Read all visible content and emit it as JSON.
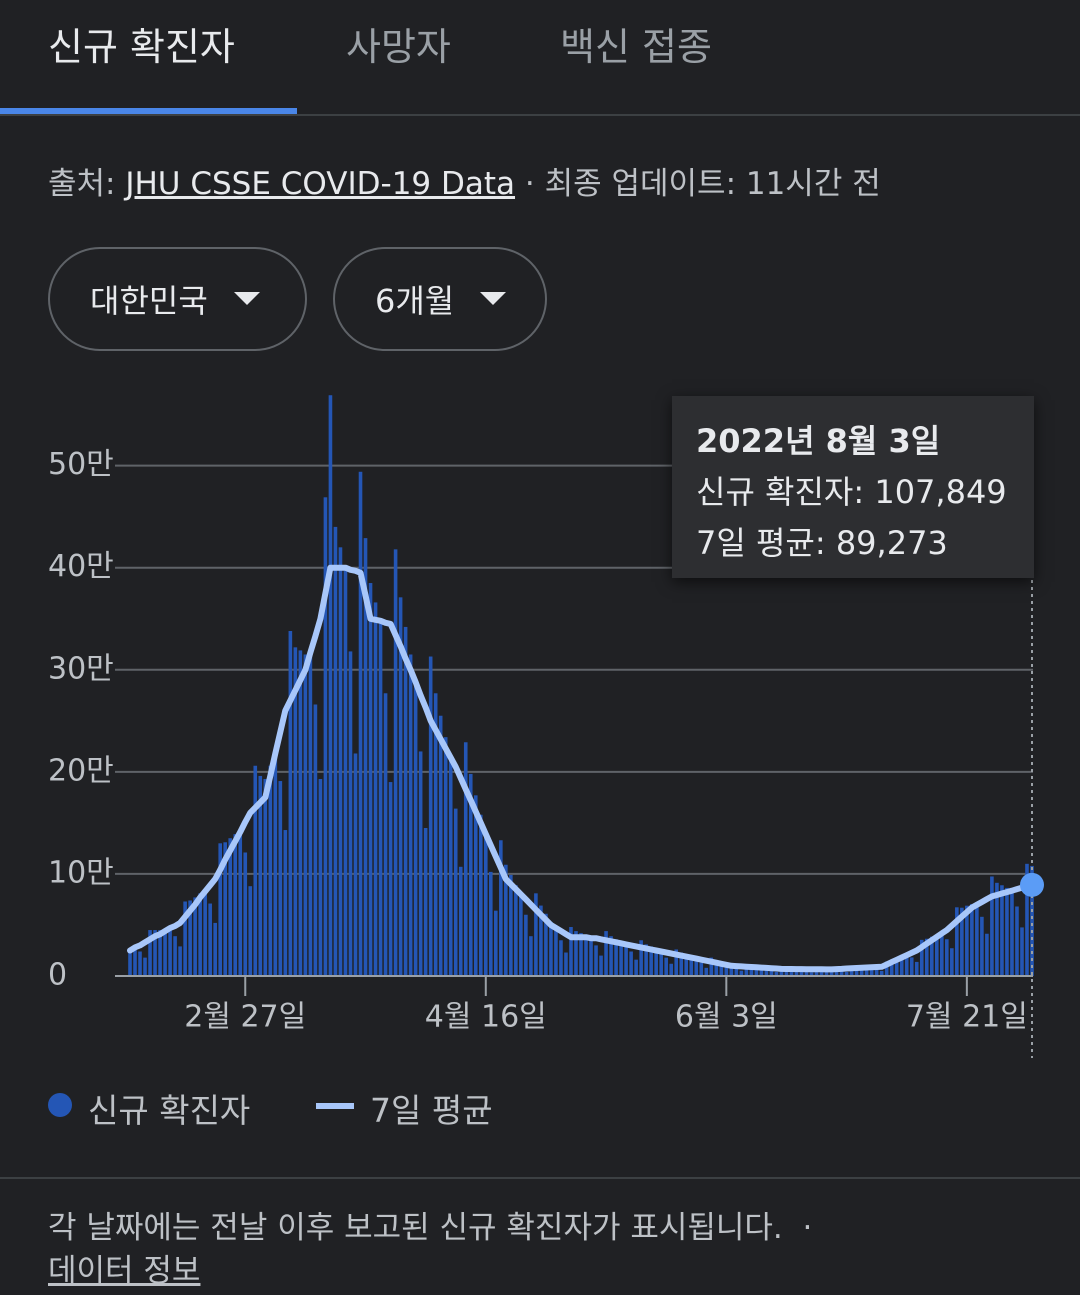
{
  "tabs": [
    "신규 확진자",
    "사망자",
    "백신 접종"
  ],
  "source": {
    "prefix": "출처:",
    "link": "JHU CSSE COVID-19 Data",
    "separator": "·",
    "updated": "최종 업데이트: 11시간 전"
  },
  "filters": [
    "대한민국",
    "6개월"
  ],
  "chart_data": {
    "type": "bar",
    "categories": [
      null,
      null,
      null,
      null,
      null,
      null,
      null,
      null,
      null,
      null,
      null,
      null,
      null,
      null,
      null,
      null,
      null,
      null,
      null,
      null,
      null,
      null,
      null,
      "2월 27일",
      null,
      null,
      null,
      null,
      null,
      null,
      null,
      null,
      null,
      null,
      null,
      null,
      null,
      null,
      null,
      null,
      null,
      null,
      null,
      null,
      null,
      null,
      null,
      null,
      null,
      null,
      null,
      null,
      null,
      null,
      null,
      null,
      null,
      null,
      null,
      null,
      null,
      null,
      null,
      null,
      null,
      null,
      null,
      null,
      null,
      null,
      null,
      "4월 16일",
      null,
      null,
      null,
      null,
      null,
      null,
      null,
      null,
      null,
      null,
      null,
      null,
      null,
      null,
      null,
      null,
      null,
      null,
      null,
      null,
      null,
      null,
      null,
      null,
      null,
      null,
      null,
      null,
      null,
      null,
      null,
      null,
      null,
      null,
      null,
      null,
      null,
      null,
      null,
      null,
      null,
      null,
      null,
      null,
      null,
      null,
      null,
      "6월 3일",
      null,
      null,
      null,
      null,
      null,
      null,
      null,
      null,
      null,
      null,
      null,
      null,
      null,
      null,
      null,
      null,
      null,
      null,
      null,
      null,
      null,
      null,
      null,
      null,
      null,
      null,
      null,
      null,
      null,
      null,
      null,
      null,
      null,
      null,
      null,
      null,
      null,
      null,
      null,
      null,
      null,
      null,
      null,
      null,
      null,
      null,
      null,
      "7월 21일",
      null,
      null,
      null,
      null,
      null,
      null,
      null,
      null,
      null,
      null,
      null,
      null,
      null
    ],
    "series": [
      {
        "name": "신규 확진자",
        "type": "bar",
        "color": "#2456b5",
        "values": [
          26000,
          28000,
          24000,
          18000,
          45000,
          45000,
          45000,
          46000,
          47000,
          39000,
          29000,
          73000,
          74000,
          77000,
          81000,
          83000,
          71000,
          52000,
          130000,
          131000,
          135000,
          139000,
          141000,
          121000,
          88000,
          206000,
          196000,
          193000,
          206000,
          218000,
          191000,
          143000,
          338000,
          322000,
          319000,
          315000,
          317000,
          266000,
          193000,
          469000,
          569000,
          440000,
          420000,
          400000,
          318000,
          218000,
          494000,
          429000,
          385000,
          366000,
          348000,
          277000,
          190000,
          418000,
          371000,
          342000,
          315000,
          288000,
          220000,
          145000,
          313000,
          277000,
          255000,
          234000,
          214000,
          164000,
          107000,
          229000,
          198000,
          177000,
          158000,
          139000,
          102000,
          64000,
          133000,
          109000,
          99000,
          89000,
          80000,
          60000,
          39000,
          81000,
          69000,
          61000,
          53000,
          47000,
          35000,
          23000,
          48000,
          44000,
          42000,
          40000,
          37000,
          30000,
          20000,
          44000,
          39000,
          36000,
          34000,
          31000,
          24000,
          16000,
          35000,
          31000,
          29000,
          26000,
          24000,
          18000,
          12000,
          26000,
          23000,
          21000,
          19000,
          17000,
          13000,
          8000,
          18000,
          15000,
          13000,
          12000,
          10000,
          7800,
          5200,
          11400,
          10100,
          9400,
          8600,
          7900,
          6100,
          4000,
          8800,
          7900,
          7600,
          7100,
          6800,
          5400,
          3700,
          8300,
          7600,
          7200,
          6800,
          6800,
          5600,
          4000,
          9400,
          9000,
          8800,
          8700,
          8500,
          7000,
          5000,
          14100,
          15600,
          17500,
          19000,
          20400,
          18200,
          13800,
          35400,
          36500,
          38500,
          40200,
          41700,
          36000,
          27200,
          67300,
          66900,
          68900,
          70400,
          69800,
          58000,
          41400,
          97500,
          91300,
          88900,
          86300,
          83600,
          68100,
          47600,
          109900,
          107849
        ],
        "value_labels": [
          null,
          null,
          null,
          null,
          null,
          null,
          null,
          null,
          null,
          null,
          null,
          null,
          null,
          null,
          null,
          null,
          null,
          null,
          null,
          null,
          null,
          null,
          null,
          null,
          null,
          null,
          null,
          null,
          null,
          null,
          null,
          null,
          null,
          null,
          null,
          null,
          null,
          null,
          null,
          null,
          null,
          null,
          null,
          null,
          null,
          null,
          null,
          null,
          null,
          null,
          null,
          null,
          null,
          null,
          null,
          null,
          null,
          null,
          null,
          null,
          null,
          null,
          null,
          null,
          null,
          null,
          null,
          null,
          null,
          null,
          null,
          null,
          null,
          null,
          null,
          null,
          null,
          null,
          null,
          null,
          null,
          null,
          null,
          null,
          null,
          null,
          null,
          null,
          null,
          null,
          null,
          null,
          null,
          null,
          null,
          null,
          null,
          null,
          null,
          null,
          null,
          null,
          null,
          null,
          null,
          null,
          null,
          null,
          null,
          null,
          null,
          null,
          null,
          null,
          null,
          null,
          null,
          null,
          null,
          null,
          null,
          null,
          null,
          null,
          null,
          null,
          null,
          null,
          null,
          null,
          null,
          null,
          null,
          null,
          null,
          null,
          null,
          null,
          null,
          null,
          null,
          null,
          null,
          null,
          null,
          null,
          null,
          null,
          null,
          null,
          null,
          null,
          null,
          null,
          null,
          null,
          null,
          null,
          null,
          null,
          null,
          null,
          null,
          null,
          null,
          null,
          null,
          null,
          null,
          null,
          null,
          null,
          null,
          null,
          null,
          null,
          null,
          null,
          null,
          null,
          "107,849"
        ]
      },
      {
        "name": "7일 평균",
        "type": "line",
        "color": "#a8c7fa",
        "values": [
          25000,
          28000,
          30000,
          33000,
          36000,
          39000,
          41000,
          44000,
          47000,
          49000,
          52000,
          58000,
          64000,
          70000,
          77000,
          83000,
          89000,
          95000,
          104000,
          114000,
          123000,
          132000,
          141000,
          151000,
          160000,
          165000,
          170000,
          175000,
          196000,
          218000,
          239000,
          260000,
          270000,
          280000,
          290000,
          300000,
          317000,
          333000,
          350000,
          375000,
          400000,
          400000,
          400000,
          400000,
          398000,
          397000,
          395000,
          373000,
          350000,
          349000,
          348000,
          346000,
          345000,
          334000,
          323000,
          311000,
          300000,
          288000,
          275000,
          263000,
          250000,
          241000,
          232000,
          223000,
          214000,
          205000,
          194000,
          183000,
          172000,
          161000,
          150000,
          139000,
          128000,
          117000,
          106000,
          95000,
          90000,
          85000,
          80000,
          75000,
          70000,
          65000,
          60000,
          55000,
          50000,
          47000,
          44000,
          41000,
          38000,
          38000,
          38000,
          38000,
          37000,
          37000,
          36000,
          35000,
          34000,
          33000,
          32000,
          31000,
          30000,
          29000,
          28000,
          27000,
          26000,
          25000,
          24000,
          23000,
          22000,
          21000,
          20000,
          19000,
          18000,
          17000,
          16000,
          15000,
          14000,
          13000,
          12000,
          11000,
          10000,
          9700,
          9400,
          9100,
          8800,
          8500,
          8200,
          7900,
          7600,
          7300,
          7000,
          6900,
          6900,
          6800,
          6800,
          6700,
          6700,
          6600,
          6600,
          6500,
          6500,
          6800,
          7000,
          7300,
          7500,
          7800,
          8000,
          8300,
          8500,
          8800,
          9000,
          11300,
          13600,
          15900,
          18100,
          20400,
          22700,
          25000,
          28300,
          31700,
          35000,
          38300,
          41700,
          45000,
          49400,
          53800,
          58200,
          62600,
          67000,
          69800,
          72500,
          75300,
          78000,
          79400,
          80800,
          82200,
          83600,
          85100,
          86500,
          87900,
          89273
        ],
        "value_labels": [
          null,
          null,
          null,
          null,
          null,
          null,
          null,
          null,
          null,
          null,
          null,
          null,
          null,
          null,
          null,
          null,
          null,
          null,
          null,
          null,
          null,
          null,
          null,
          null,
          null,
          null,
          null,
          null,
          null,
          null,
          null,
          null,
          null,
          null,
          null,
          null,
          null,
          null,
          null,
          null,
          null,
          null,
          null,
          null,
          null,
          null,
          null,
          null,
          null,
          null,
          null,
          null,
          null,
          null,
          null,
          null,
          null,
          null,
          null,
          null,
          null,
          null,
          null,
          null,
          null,
          null,
          null,
          null,
          null,
          null,
          null,
          null,
          null,
          null,
          null,
          null,
          null,
          null,
          null,
          null,
          null,
          null,
          null,
          null,
          null,
          null,
          null,
          null,
          null,
          null,
          null,
          null,
          null,
          null,
          null,
          null,
          null,
          null,
          null,
          null,
          null,
          null,
          null,
          null,
          null,
          null,
          null,
          null,
          null,
          null,
          null,
          null,
          null,
          null,
          null,
          null,
          null,
          null,
          null,
          null,
          null,
          null,
          null,
          null,
          null,
          null,
          null,
          null,
          null,
          null,
          null,
          null,
          null,
          null,
          null,
          null,
          null,
          null,
          null,
          null,
          null,
          null,
          null,
          null,
          null,
          null,
          null,
          null,
          null,
          null,
          null,
          null,
          null,
          null,
          null,
          null,
          null,
          null,
          null,
          null,
          null,
          null,
          null,
          null,
          null,
          null,
          null,
          null,
          null,
          null,
          null,
          null,
          null,
          null,
          null,
          null,
          null,
          null,
          null,
          null,
          "89,273"
        ]
      }
    ],
    "ylim": [
      0,
      580000
    ],
    "yticks": [
      0,
      {
        "value": 100000,
        "label": "10만"
      },
      {
        "value": 200000,
        "label": "20만"
      },
      {
        "value": 300000,
        "label": "30만"
      },
      {
        "value": 400000,
        "label": "40만"
      },
      {
        "value": 500000,
        "label": "50만"
      }
    ],
    "grid": true,
    "tooltip": {
      "title": "2022년 8월 3일",
      "rows": [
        "신규 확진자:",
        "7일 평균:"
      ]
    }
  },
  "footer": {
    "note": "각 날짜에는 전날 이후 보고된 신규 확진자가 표시됩니다.",
    "separator": "·",
    "link": "데이터 정보"
  }
}
